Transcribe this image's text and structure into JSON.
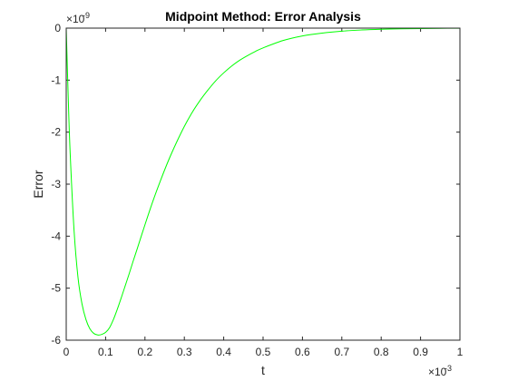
{
  "chart_data": {
    "type": "line",
    "title": "Midpoint Method: Error Analysis",
    "xlabel": "t",
    "ylabel": "Error",
    "x_scale_base": "×10",
    "x_scale_exponent": "-3",
    "y_scale_base": "×10",
    "y_scale_exponent": "-9",
    "xlim": [
      0,
      1
    ],
    "ylim": [
      -6,
      0
    ],
    "x_ticks": [
      "0",
      "0.1",
      "0.2",
      "0.3",
      "0.4",
      "0.5",
      "0.6",
      "0.7",
      "0.8",
      "0.9",
      "1"
    ],
    "y_ticks": [
      "0",
      "-1",
      "-2",
      "-3",
      "-4",
      "-5",
      "-6"
    ],
    "grid": false,
    "line_color": "#00ff00",
    "series": [
      {
        "x": [
          0,
          0.005,
          0.01,
          0.02,
          0.03,
          0.04,
          0.05,
          0.06,
          0.07,
          0.08,
          0.09,
          0.1,
          0.11,
          0.12,
          0.13,
          0.14,
          0.15,
          0.16,
          0.17,
          0.18,
          0.2,
          0.22,
          0.24,
          0.26,
          0.28,
          0.3,
          0.32,
          0.34,
          0.36,
          0.38,
          0.4,
          0.42,
          0.44,
          0.46,
          0.48,
          0.5,
          0.55,
          0.6,
          0.65,
          0.7,
          0.75,
          0.8,
          0.85,
          0.9,
          0.95,
          1.0
        ],
        "y": [
          0,
          -1.3,
          -2.4,
          -3.9,
          -4.8,
          -5.3,
          -5.6,
          -5.78,
          -5.87,
          -5.9,
          -5.89,
          -5.85,
          -5.76,
          -5.6,
          -5.4,
          -5.18,
          -4.95,
          -4.72,
          -4.48,
          -4.25,
          -3.78,
          -3.33,
          -2.92,
          -2.54,
          -2.2,
          -1.89,
          -1.62,
          -1.39,
          -1.19,
          -1.01,
          -0.86,
          -0.73,
          -0.62,
          -0.53,
          -0.45,
          -0.38,
          -0.24,
          -0.15,
          -0.095,
          -0.058,
          -0.036,
          -0.022,
          -0.013,
          -0.008,
          -0.004,
          -0.002
        ]
      }
    ]
  }
}
